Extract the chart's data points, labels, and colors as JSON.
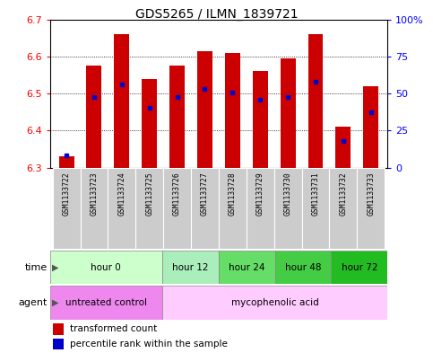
{
  "title": "GDS5265 / ILMN_1839721",
  "samples": [
    "GSM1133722",
    "GSM1133723",
    "GSM1133724",
    "GSM1133725",
    "GSM1133726",
    "GSM1133727",
    "GSM1133728",
    "GSM1133729",
    "GSM1133730",
    "GSM1133731",
    "GSM1133732",
    "GSM1133733"
  ],
  "bar_tops": [
    6.33,
    6.575,
    6.66,
    6.54,
    6.575,
    6.615,
    6.61,
    6.56,
    6.595,
    6.66,
    6.41,
    6.52
  ],
  "blue_dots": [
    6.334,
    6.49,
    6.525,
    6.462,
    6.49,
    6.512,
    6.502,
    6.484,
    6.49,
    6.532,
    6.372,
    6.45
  ],
  "bar_base": 6.3,
  "ylim_min": 6.3,
  "ylim_max": 6.7,
  "left_yticks": [
    6.3,
    6.4,
    6.5,
    6.6,
    6.7
  ],
  "right_ytick_vals": [
    0,
    25,
    50,
    75,
    100
  ],
  "bar_color": "#cc0000",
  "blue_color": "#0000cc",
  "sample_box_color": "#cccccc",
  "time_groups": [
    {
      "label": "hour 0",
      "start": 0,
      "end": 4,
      "color": "#ccffcc"
    },
    {
      "label": "hour 12",
      "start": 4,
      "end": 6,
      "color": "#aaeebb"
    },
    {
      "label": "hour 24",
      "start": 6,
      "end": 8,
      "color": "#66dd66"
    },
    {
      "label": "hour 48",
      "start": 8,
      "end": 10,
      "color": "#44cc44"
    },
    {
      "label": "hour 72",
      "start": 10,
      "end": 12,
      "color": "#22bb22"
    }
  ],
  "agent_groups": [
    {
      "label": "untreated control",
      "start": 0,
      "end": 4,
      "color": "#ee88ee"
    },
    {
      "label": "mycophenolic acid",
      "start": 4,
      "end": 12,
      "color": "#ffccff"
    }
  ],
  "bar_width": 0.55,
  "fig_width": 4.83,
  "fig_height": 3.93,
  "dpi": 100
}
